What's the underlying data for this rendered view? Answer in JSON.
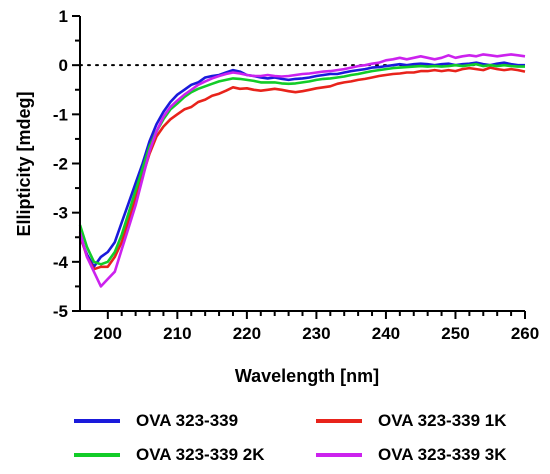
{
  "chart_data": {
    "type": "line",
    "title": "",
    "xlabel": "Wavelength [nm]",
    "ylabel": "Ellipticity [mdeg]",
    "xlim": [
      196,
      260
    ],
    "ylim": [
      -5,
      1
    ],
    "xticks": [
      "200",
      "210",
      "220",
      "230",
      "240",
      "250",
      "260"
    ],
    "yticks": [
      "1",
      "0",
      "-1",
      "-2",
      "-3",
      "-4",
      "-5"
    ],
    "reference_line": {
      "y": 0,
      "style": "dotted"
    },
    "grid": false,
    "legend_position": "bottom",
    "series": [
      {
        "name": "OVA 323-339",
        "color": "#1a1adb",
        "x": [
          196,
          197,
          198,
          199,
          200,
          201,
          202,
          203,
          204,
          205,
          206,
          207,
          208,
          209,
          210,
          211,
          212,
          213,
          214,
          215,
          216,
          217,
          218,
          219,
          220,
          221,
          222,
          223,
          224,
          225,
          226,
          227,
          228,
          229,
          230,
          231,
          232,
          233,
          234,
          235,
          236,
          237,
          238,
          239,
          240,
          241,
          242,
          243,
          244,
          245,
          246,
          247,
          248,
          249,
          250,
          251,
          252,
          253,
          254,
          255,
          256,
          257,
          258,
          259,
          260
        ],
        "y": [
          -3.5,
          -3.85,
          -4.1,
          -3.9,
          -3.8,
          -3.6,
          -3.2,
          -2.8,
          -2.4,
          -2.0,
          -1.55,
          -1.2,
          -0.95,
          -0.75,
          -0.6,
          -0.5,
          -0.4,
          -0.35,
          -0.25,
          -0.22,
          -0.2,
          -0.15,
          -0.1,
          -0.13,
          -0.2,
          -0.22,
          -0.25,
          -0.27,
          -0.25,
          -0.28,
          -0.3,
          -0.28,
          -0.27,
          -0.25,
          -0.22,
          -0.2,
          -0.18,
          -0.18,
          -0.15,
          -0.12,
          -0.1,
          -0.08,
          -0.05,
          -0.04,
          -0.02,
          0.0,
          0.02,
          0.0,
          0.02,
          0.03,
          0.02,
          0.0,
          0.02,
          0.03,
          0.0,
          0.02,
          0.03,
          0.05,
          0.02,
          0.0,
          0.03,
          0.05,
          0.02,
          0.0,
          0.0
        ]
      },
      {
        "name": "OVA 323-339 1K",
        "color": "#e8231b",
        "x": [
          196,
          197,
          198,
          199,
          200,
          201,
          202,
          203,
          204,
          205,
          206,
          207,
          208,
          209,
          210,
          211,
          212,
          213,
          214,
          215,
          216,
          217,
          218,
          219,
          220,
          221,
          222,
          223,
          224,
          225,
          226,
          227,
          228,
          229,
          230,
          231,
          232,
          233,
          234,
          235,
          236,
          237,
          238,
          239,
          240,
          241,
          242,
          243,
          244,
          245,
          246,
          247,
          248,
          249,
          250,
          251,
          252,
          253,
          254,
          255,
          256,
          257,
          258,
          259,
          260
        ],
        "y": [
          -3.45,
          -3.9,
          -4.15,
          -4.1,
          -4.1,
          -3.9,
          -3.6,
          -3.15,
          -2.7,
          -2.25,
          -1.8,
          -1.45,
          -1.25,
          -1.1,
          -1.0,
          -0.9,
          -0.85,
          -0.75,
          -0.7,
          -0.62,
          -0.58,
          -0.52,
          -0.45,
          -0.48,
          -0.47,
          -0.5,
          -0.52,
          -0.5,
          -0.48,
          -0.5,
          -0.53,
          -0.55,
          -0.53,
          -0.5,
          -0.47,
          -0.45,
          -0.43,
          -0.38,
          -0.35,
          -0.33,
          -0.3,
          -0.28,
          -0.25,
          -0.22,
          -0.2,
          -0.18,
          -0.17,
          -0.15,
          -0.15,
          -0.12,
          -0.12,
          -0.1,
          -0.12,
          -0.1,
          -0.12,
          -0.08,
          -0.06,
          -0.08,
          -0.1,
          -0.05,
          -0.08,
          -0.1,
          -0.08,
          -0.1,
          -0.13
        ]
      },
      {
        "name": "OVA 323-339 2K",
        "color": "#12cc28",
        "x": [
          196,
          197,
          198,
          199,
          200,
          201,
          202,
          203,
          204,
          205,
          206,
          207,
          208,
          209,
          210,
          211,
          212,
          213,
          214,
          215,
          216,
          217,
          218,
          219,
          220,
          221,
          222,
          223,
          224,
          225,
          226,
          227,
          228,
          229,
          230,
          231,
          232,
          233,
          234,
          235,
          236,
          237,
          238,
          239,
          240,
          241,
          242,
          243,
          244,
          245,
          246,
          247,
          248,
          249,
          250,
          251,
          252,
          253,
          254,
          255,
          256,
          257,
          258,
          259,
          260
        ],
        "y": [
          -3.25,
          -3.7,
          -4.0,
          -4.05,
          -4.0,
          -3.8,
          -3.45,
          -3.0,
          -2.55,
          -2.1,
          -1.65,
          -1.35,
          -1.1,
          -0.9,
          -0.78,
          -0.65,
          -0.55,
          -0.48,
          -0.43,
          -0.38,
          -0.33,
          -0.3,
          -0.27,
          -0.28,
          -0.3,
          -0.32,
          -0.35,
          -0.35,
          -0.35,
          -0.37,
          -0.38,
          -0.37,
          -0.35,
          -0.33,
          -0.3,
          -0.28,
          -0.27,
          -0.25,
          -0.23,
          -0.2,
          -0.18,
          -0.15,
          -0.12,
          -0.1,
          -0.08,
          -0.06,
          -0.05,
          -0.04,
          -0.03,
          -0.02,
          -0.03,
          -0.02,
          -0.03,
          -0.02,
          0.0,
          -0.02,
          0.0,
          0.02,
          -0.02,
          0.0,
          -0.02,
          0.0,
          -0.02,
          -0.03,
          -0.03
        ]
      },
      {
        "name": "OVA 323-339 3K",
        "color": "#cc22ee",
        "x": [
          196,
          197,
          198,
          199,
          200,
          201,
          202,
          203,
          204,
          205,
          206,
          207,
          208,
          209,
          210,
          211,
          212,
          213,
          214,
          215,
          216,
          217,
          218,
          219,
          220,
          221,
          222,
          223,
          224,
          225,
          226,
          227,
          228,
          229,
          230,
          231,
          232,
          233,
          234,
          235,
          236,
          237,
          238,
          239,
          240,
          241,
          242,
          243,
          244,
          245,
          246,
          247,
          248,
          249,
          250,
          251,
          252,
          253,
          254,
          255,
          256,
          257,
          258,
          259,
          260
        ],
        "y": [
          -3.4,
          -3.9,
          -4.2,
          -4.5,
          -4.35,
          -4.2,
          -3.75,
          -3.3,
          -2.85,
          -2.3,
          -1.75,
          -1.35,
          -1.05,
          -0.85,
          -0.72,
          -0.6,
          -0.5,
          -0.4,
          -0.33,
          -0.27,
          -0.22,
          -0.18,
          -0.15,
          -0.17,
          -0.2,
          -0.22,
          -0.22,
          -0.2,
          -0.22,
          -0.23,
          -0.22,
          -0.2,
          -0.18,
          -0.17,
          -0.15,
          -0.13,
          -0.12,
          -0.1,
          -0.08,
          -0.05,
          -0.02,
          0.0,
          0.03,
          0.05,
          0.1,
          0.12,
          0.15,
          0.12,
          0.15,
          0.18,
          0.15,
          0.12,
          0.15,
          0.2,
          0.15,
          0.18,
          0.2,
          0.18,
          0.22,
          0.2,
          0.18,
          0.2,
          0.22,
          0.2,
          0.18
        ]
      }
    ]
  },
  "legend": {
    "items": [
      {
        "label": "OVA 323-339",
        "color": "#1a1adb"
      },
      {
        "label": "OVA 323-339 1K",
        "color": "#e8231b"
      },
      {
        "label": "OVA 323-339 2K",
        "color": "#12cc28"
      },
      {
        "label": "OVA 323-339 3K",
        "color": "#cc22ee"
      }
    ]
  }
}
